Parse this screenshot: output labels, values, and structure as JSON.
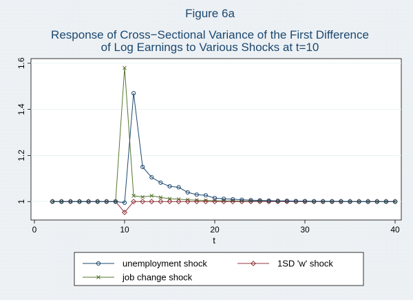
{
  "chart_data": {
    "type": "line",
    "title_lines": [
      "Figure 6a",
      "Response of Cross−Sectional Variance of the First Difference",
      "of Log Earnings to Various Shocks at t=10"
    ],
    "xlabel": "t",
    "ylabel": "",
    "xlim": [
      0,
      40
    ],
    "ylim": [
      0.92,
      1.62
    ],
    "xticks": [
      0,
      10,
      20,
      30,
      40
    ],
    "yticks": [
      1,
      1.2,
      1.4,
      1.6
    ],
    "xtick_labels": [
      "0",
      "10",
      "20",
      "30",
      "40"
    ],
    "ytick_labels": [
      "1",
      "1.2",
      "1.4",
      "1.6"
    ],
    "grid": "horizontal",
    "legend_position": "bottom",
    "x": [
      2,
      3,
      4,
      5,
      6,
      7,
      8,
      9,
      10,
      11,
      12,
      13,
      14,
      15,
      16,
      17,
      18,
      19,
      20,
      21,
      22,
      23,
      24,
      25,
      26,
      27,
      28,
      29,
      30,
      31,
      32,
      33,
      34,
      35,
      36,
      37,
      38,
      39,
      40
    ],
    "series": [
      {
        "name": "unemployment shock",
        "color": "#1a476f",
        "marker": "circle",
        "values": [
          1,
          1,
          1,
          1,
          1,
          1,
          1,
          1,
          0.995,
          1.47,
          1.15,
          1.105,
          1.082,
          1.066,
          1.062,
          1.04,
          1.03,
          1.027,
          1.015,
          1.012,
          1.01,
          1.008,
          1.006,
          1.005,
          1.004,
          1.003,
          1.003,
          1.002,
          1.002,
          1.001,
          1.001,
          1.001,
          1.001,
          1,
          1,
          1,
          1,
          1,
          1
        ]
      },
      {
        "name": "1SD 'w' shock",
        "color": "#90353b",
        "marker": "diamond",
        "values": [
          1,
          1,
          1,
          1,
          1,
          1,
          1,
          1,
          0.953,
          1,
          1,
          1,
          1,
          1,
          1,
          1,
          1,
          1,
          1,
          1,
          1,
          1,
          1,
          1,
          1,
          1,
          1,
          1,
          1,
          1,
          1,
          1,
          1,
          1,
          1,
          1,
          1,
          1,
          1
        ]
      },
      {
        "name": "job change shock",
        "color": "#55752f",
        "marker": "x",
        "values": [
          1,
          1,
          1,
          1,
          1,
          1,
          1,
          1,
          1.58,
          1.025,
          1.02,
          1.025,
          1.018,
          1.012,
          1.01,
          1.008,
          1.006,
          1.005,
          1.004,
          1.003,
          1.003,
          1.002,
          1.002,
          1.002,
          1.001,
          1.001,
          1.001,
          1.001,
          1,
          1,
          1,
          1,
          1,
          1,
          1,
          1,
          1,
          1,
          1
        ]
      }
    ]
  }
}
